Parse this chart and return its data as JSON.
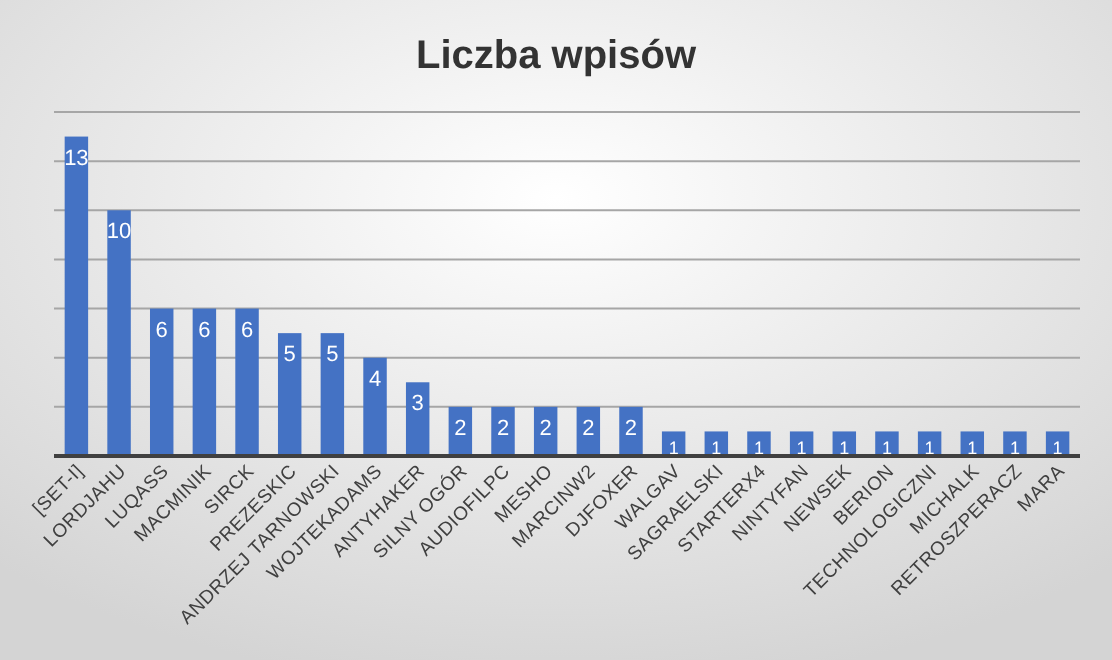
{
  "chart_data": {
    "type": "bar",
    "title": "Liczba wpisów",
    "categories": [
      "[SET-I]",
      "LORDJAHU",
      "LUQASS",
      "MACMINIK",
      "SIRCK",
      "PREZESKIC",
      "ANDRZEJ TARNOWSKI",
      "WOJTEKADAMS",
      "ANTYHAKER",
      "SILNY OGÓR",
      "AUDIOFILPC",
      "MESHO",
      "MARCINW2",
      "DJFOXER",
      "WALGAV",
      "SAGRAELSKI",
      "STARTERX4",
      "NINTYFAN",
      "NEWSEK",
      "BERION",
      "TECHNOLOGICZNI",
      "MICHALK",
      "RETROSZPERACZ",
      "MARA"
    ],
    "values": [
      13,
      10,
      6,
      6,
      6,
      5,
      5,
      4,
      3,
      2,
      2,
      2,
      2,
      2,
      1,
      1,
      1,
      1,
      1,
      1,
      1,
      1,
      1,
      1
    ],
    "color": "#4472c4",
    "ylim": [
      0,
      14
    ],
    "yticks": [
      {
        "value": 0,
        "label": null
      },
      {
        "value": 2,
        "label": null
      },
      {
        "value": 4,
        "label": null
      },
      {
        "value": 6,
        "label": null
      },
      {
        "value": 8,
        "label": null
      },
      {
        "value": 10,
        "label": null
      },
      {
        "value": 12,
        "label": null
      },
      {
        "value": 14,
        "label": null
      }
    ],
    "grid": "y",
    "data_labels": true,
    "tick_labels": "x"
  }
}
